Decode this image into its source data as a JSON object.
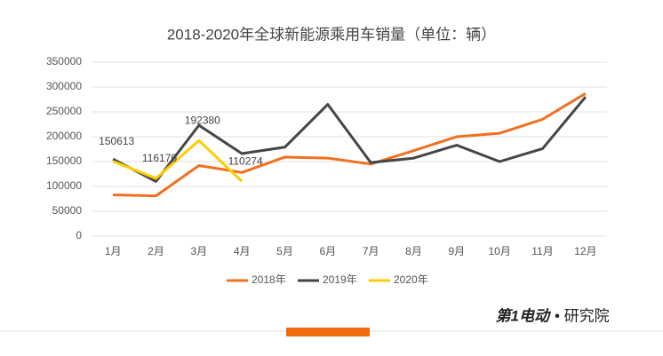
{
  "chart_data": {
    "type": "line",
    "title": "2018-2020年全球新能源乘用车销量（单位：辆）",
    "categories": [
      "1月",
      "2月",
      "3月",
      "4月",
      "5月",
      "6月",
      "7月",
      "8月",
      "9月",
      "10月",
      "11月",
      "12月"
    ],
    "series": [
      {
        "name": "2018年",
        "color": "#f07020",
        "values": [
          83000,
          81000,
          142000,
          128000,
          159000,
          157000,
          145000,
          172000,
          200000,
          207000,
          235000,
          287000
        ]
      },
      {
        "name": "2019年",
        "color": "#454545",
        "values": [
          155000,
          110000,
          223000,
          166000,
          179000,
          265000,
          148000,
          157000,
          183000,
          150000,
          176000,
          280000
        ]
      },
      {
        "name": "2020年",
        "color": "#ffcc00",
        "values": [
          150613,
          116170,
          192380,
          110274,
          null,
          null,
          null,
          null,
          null,
          null,
          null,
          null
        ],
        "data_labels": true
      }
    ],
    "ylim": [
      0,
      350000
    ],
    "yticks": [
      0,
      50000,
      100000,
      150000,
      200000,
      250000,
      300000,
      350000
    ],
    "grid": true,
    "legend": "bottom"
  },
  "branding": {
    "logo": "第1电动",
    "suffix": "• 研究院"
  }
}
